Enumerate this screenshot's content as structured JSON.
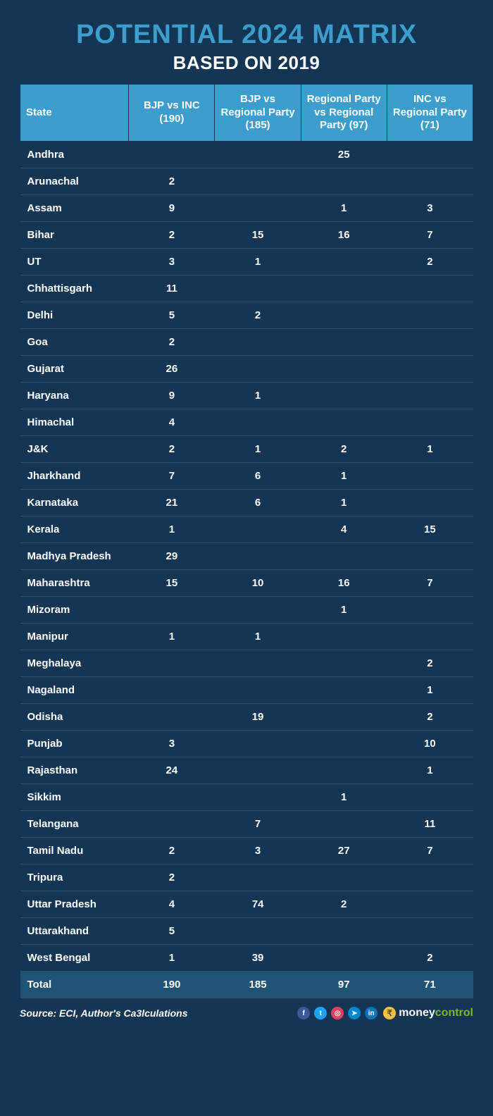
{
  "title": "POTENTIAL 2024 MATRIX",
  "title_color": "#3d9ece",
  "title_fontsize": 38,
  "subtitle": "BASED ON 2019",
  "subtitle_color": "#ffffff",
  "subtitle_fontsize": 26,
  "background_color": "#143654",
  "table": {
    "header_bg": "#3d9ece",
    "header_text_color": "#ffffff",
    "header_border_color": "#143654",
    "row_border_color": "#2a5270",
    "total_bg": "#1f5376",
    "cell_fontsize": 15,
    "header_fontsize": 15,
    "columns": [
      "State",
      "BJP vs INC (190)",
      "BJP vs Regional Party (185)",
      "Regional Party vs Regional Party (97)",
      "INC vs Regional Party (71)"
    ],
    "rows": [
      [
        "Andhra",
        "",
        "",
        "25",
        ""
      ],
      [
        "Arunachal",
        "2",
        "",
        "",
        ""
      ],
      [
        "Assam",
        "9",
        "",
        "1",
        "3"
      ],
      [
        "Bihar",
        "2",
        "15",
        "16",
        "7"
      ],
      [
        "UT",
        "3",
        "1",
        "",
        "2"
      ],
      [
        "Chhattisgarh",
        "11",
        "",
        "",
        ""
      ],
      [
        "Delhi",
        "5",
        "2",
        "",
        ""
      ],
      [
        "Goa",
        "2",
        "",
        "",
        ""
      ],
      [
        "Gujarat",
        "26",
        "",
        "",
        ""
      ],
      [
        "Haryana",
        "9",
        "1",
        "",
        ""
      ],
      [
        "Himachal",
        "4",
        "",
        "",
        ""
      ],
      [
        "J&K",
        "2",
        "1",
        "2",
        "1"
      ],
      [
        "Jharkhand",
        "7",
        "6",
        "1",
        ""
      ],
      [
        "Karnataka",
        "21",
        "6",
        "1",
        ""
      ],
      [
        "Kerala",
        "1",
        "",
        "4",
        "15"
      ],
      [
        "Madhya Pradesh",
        "29",
        "",
        "",
        ""
      ],
      [
        "Maharashtra",
        "15",
        "10",
        "16",
        "7"
      ],
      [
        "Mizoram",
        "",
        "",
        "1",
        ""
      ],
      [
        "Manipur",
        "1",
        "1",
        "",
        ""
      ],
      [
        "Meghalaya",
        "",
        "",
        "",
        "2"
      ],
      [
        "Nagaland",
        "",
        "",
        "",
        "1"
      ],
      [
        "Odisha",
        "",
        "19",
        "",
        "2"
      ],
      [
        "Punjab",
        "3",
        "",
        "",
        "10"
      ],
      [
        "Rajasthan",
        "24",
        "",
        "",
        "1"
      ],
      [
        "Sikkim",
        "",
        "",
        "1",
        ""
      ],
      [
        "Telangana",
        "",
        "7",
        "",
        "11"
      ],
      [
        "Tamil Nadu",
        "2",
        "3",
        "27",
        "7"
      ],
      [
        "Tripura",
        "2",
        "",
        "",
        ""
      ],
      [
        "Uttar Pradesh",
        "4",
        "74",
        "2",
        ""
      ],
      [
        "Uttarakhand",
        "5",
        "",
        "",
        ""
      ],
      [
        "West Bengal",
        "1",
        "39",
        "",
        "2"
      ]
    ],
    "total_row": [
      "Total",
      "190",
      "185",
      "97",
      "71"
    ]
  },
  "source": "Source: ECI, Author's Ca3lculations",
  "socials": [
    {
      "name": "facebook-icon",
      "bg": "#3b5998",
      "glyph": "f"
    },
    {
      "name": "twitter-icon",
      "bg": "#1da1f2",
      "glyph": "t"
    },
    {
      "name": "instagram-icon",
      "bg": "#e4405f",
      "glyph": "◎"
    },
    {
      "name": "telegram-icon",
      "bg": "#0088cc",
      "glyph": "➤"
    },
    {
      "name": "linkedin-icon",
      "bg": "#0077b5",
      "glyph": "in"
    }
  ],
  "brand": {
    "prefix": "money",
    "suffix": "control",
    "prefix_color": "#ffffff",
    "suffix_color": "#7ab82b"
  }
}
